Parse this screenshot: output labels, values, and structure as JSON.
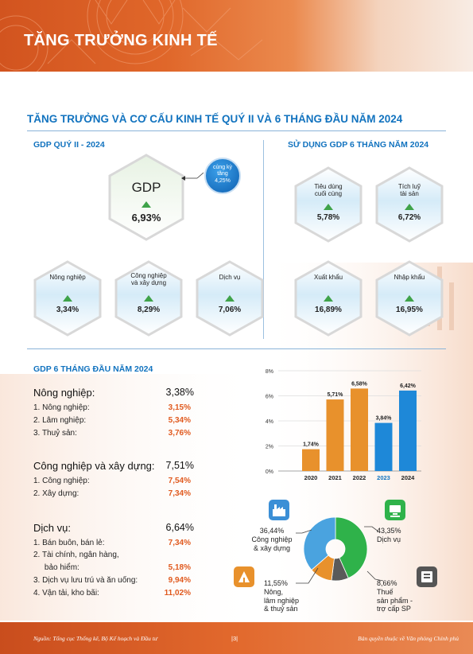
{
  "header": {
    "title": "TĂNG TRƯỞNG KINH TẾ"
  },
  "main_title": "TĂNG TRƯỞNG VÀ CƠ CẤU KINH TẾ QUÝ II VÀ 6 THÁNG ĐẦU NĂM 2024",
  "gdp_q2": {
    "heading": "GDP QUÝ II - 2024",
    "main": {
      "label": "GDP",
      "value": "6,93%"
    },
    "same_period": {
      "line1": "cùng kỳ",
      "line2": "tăng",
      "value": "4,25%"
    },
    "items": [
      {
        "label": "Nông nghiệp",
        "value": "3,34%"
      },
      {
        "label": "Công nghiệp\nvà xây dựng",
        "value": "8,29%"
      },
      {
        "label": "Dịch vụ",
        "value": "7,06%"
      }
    ]
  },
  "usage": {
    "heading": "SỬ DỤNG GDP 6 THÁNG NĂM 2024",
    "items": [
      {
        "label": "Tiêu dùng\ncuối cùng",
        "value": "5,78%"
      },
      {
        "label": "Tích luỹ\ntài sản",
        "value": "6,72%"
      },
      {
        "label": "Xuất khẩu",
        "value": "16,89%"
      },
      {
        "label": "Nhập khẩu",
        "value": "16,95%"
      }
    ]
  },
  "gdp_6m": {
    "heading": "GDP 6 THÁNG ĐẦU NĂM 2024",
    "groups": [
      {
        "name": "Nông nghiệp:",
        "value": "3,38%",
        "rows": [
          {
            "label": "1.  Nông nghiệp:",
            "value": "3,15%"
          },
          {
            "label": "2.  Lâm nghiệp:",
            "value": "5,34%"
          },
          {
            "label": "3.  Thuỷ sản:",
            "value": "3,76%"
          }
        ]
      },
      {
        "name": "Công nghiệp và xây dựng:",
        "value": "7,51%",
        "rows": [
          {
            "label": "1.  Công nghiệp:",
            "value": "7,54%"
          },
          {
            "label": "2.  Xây dựng:",
            "value": "7,34%"
          }
        ]
      },
      {
        "name": "Dịch vụ:",
        "value": "6,64%",
        "rows": [
          {
            "label": "1.  Bán buôn, bán lẻ:",
            "value": "7,34%"
          },
          {
            "label": "2.  Tài chính, ngân hàng,",
            "value": ""
          },
          {
            "label": "     bảo hiểm:",
            "value": "5,18%"
          },
          {
            "label": "3.  Dịch vụ lưu trú và ăn uống:",
            "value": "9,94%"
          },
          {
            "label": "4.  Vận tải, kho bãi:",
            "value": "11,02%"
          }
        ]
      }
    ]
  },
  "chart_data": [
    {
      "type": "bar",
      "categories": [
        "2020",
        "2021",
        "2022",
        "2023",
        "2024"
      ],
      "values": [
        1.74,
        5.71,
        6.58,
        3.84,
        6.42
      ],
      "value_labels": [
        "1,74%",
        "5,71%",
        "6,58%",
        "3,84%",
        "6,42%"
      ],
      "ylim": [
        0,
        8
      ],
      "yticks": [
        "0%",
        "2%",
        "4%",
        "6%",
        "8%"
      ],
      "colors": [
        "#e8912c",
        "#e8912c",
        "#e8912c",
        "#1e88d8",
        "#1e88d8"
      ]
    },
    {
      "type": "pie",
      "labels": [
        "Dịch vụ",
        "Thuế sản phẩm - trợ cấp SP",
        "Nông, lâm nghiệp & thuỷ sản",
        "Công nghiệp & xây dựng"
      ],
      "values": [
        43.35,
        8.66,
        11.55,
        36.44
      ],
      "value_labels": [
        "43,35%",
        "8,66%",
        "11,55%",
        "36,44%"
      ],
      "colors": [
        "#2fb24a",
        "#5a5a5a",
        "#e8912c",
        "#4aa3df"
      ]
    }
  ],
  "pie_labels": {
    "cn": {
      "value": "36,44%",
      "l1": "Công nghiệp",
      "l2": "& xây dựng"
    },
    "dv": {
      "value": "43,35%",
      "l1": "Dịch vụ"
    },
    "nn": {
      "value": "11,55%",
      "l1": "Nông,",
      "l2": "lâm nghiệp",
      "l3": "& thuỷ sản"
    },
    "thue": {
      "value": "8,66%",
      "l1": "Thuế",
      "l2": "sản phẩm -",
      "l3": "trợ cấp SP"
    }
  },
  "footer": {
    "source": "Nguồn: Tổng cục Thống kê, Bộ Kế hoạch và Đầu tư",
    "page": "|3|",
    "copyright": "Bản quyền thuộc về Văn phòng Chính phủ"
  },
  "colors": {
    "accent_blue": "#1273bf",
    "accent_orange": "#e05a1f",
    "green": "#3fa34a"
  }
}
